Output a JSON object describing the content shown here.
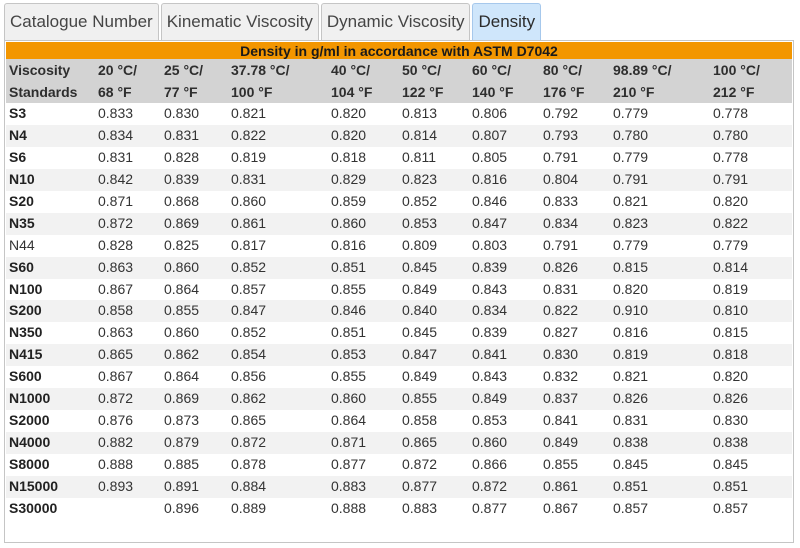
{
  "tabs": [
    {
      "label": "Catalogue Number",
      "active": false
    },
    {
      "label": "Kinematic Viscosity",
      "active": false
    },
    {
      "label": "Dynamic Viscosity",
      "active": false
    },
    {
      "label": "Density",
      "active": true
    }
  ],
  "table": {
    "banner": "Density in g/ml in accordance with ASTM D7042",
    "header": [
      {
        "line1": "Viscosity",
        "line2": "Standards"
      },
      {
        "line1": "20 °C/",
        "line2": "68 °F"
      },
      {
        "line1": "25 °C/",
        "line2": "77 °F"
      },
      {
        "line1": "37.78 °C/",
        "line2": "100 °F"
      },
      {
        "line1": "40 °C/",
        "line2": "104 °F"
      },
      {
        "line1": "50 °C/",
        "line2": "122 °F"
      },
      {
        "line1": "60 °C/",
        "line2": "140 °F"
      },
      {
        "line1": "80 °C/",
        "line2": "176 °F"
      },
      {
        "line1": "98.89 °C/",
        "line2": "210 °F"
      },
      {
        "line1": "100 °C/",
        "line2": "212 °F"
      }
    ],
    "rows": [
      {
        "name": "S3",
        "bold": true,
        "values": [
          "0.833",
          "0.830",
          "0.821",
          "0.820",
          "0.813",
          "0.806",
          "0.792",
          "0.779",
          "0.778"
        ]
      },
      {
        "name": "N4",
        "bold": true,
        "values": [
          "0.834",
          "0.831",
          "0.822",
          "0.820",
          "0.814",
          "0.807",
          "0.793",
          "0.780",
          "0.780"
        ]
      },
      {
        "name": "S6",
        "bold": true,
        "values": [
          "0.831",
          "0.828",
          "0.819",
          "0.818",
          "0.811",
          "0.805",
          "0.791",
          "0.779",
          "0.778"
        ]
      },
      {
        "name": "N10",
        "bold": true,
        "values": [
          "0.842",
          "0.839",
          "0.831",
          "0.829",
          "0.823",
          "0.816",
          "0.804",
          "0.791",
          "0.791"
        ]
      },
      {
        "name": "S20",
        "bold": true,
        "values": [
          "0.871",
          "0.868",
          "0.860",
          "0.859",
          "0.852",
          "0.846",
          "0.833",
          "0.821",
          "0.820"
        ]
      },
      {
        "name": "N35",
        "bold": true,
        "values": [
          "0.872",
          "0.869",
          "0.861",
          "0.860",
          "0.853",
          "0.847",
          "0.834",
          "0.823",
          "0.822"
        ]
      },
      {
        "name": "N44",
        "bold": false,
        "values": [
          "0.828",
          "0.825",
          "0.817",
          "0.816",
          "0.809",
          "0.803",
          "0.791",
          "0.779",
          "0.779"
        ]
      },
      {
        "name": "S60",
        "bold": true,
        "values": [
          "0.863",
          "0.860",
          "0.852",
          "0.851",
          "0.845",
          "0.839",
          "0.826",
          "0.815",
          "0.814"
        ]
      },
      {
        "name": "N100",
        "bold": true,
        "values": [
          "0.867",
          "0.864",
          "0.857",
          "0.855",
          "0.849",
          "0.843",
          "0.831",
          "0.820",
          "0.819"
        ]
      },
      {
        "name": "S200",
        "bold": true,
        "values": [
          "0.858",
          "0.855",
          "0.847",
          "0.846",
          "0.840",
          "0.834",
          "0.822",
          "0.910",
          "0.810"
        ]
      },
      {
        "name": "N350",
        "bold": true,
        "values": [
          "0.863",
          "0.860",
          "0.852",
          "0.851",
          "0.845",
          "0.839",
          "0.827",
          "0.816",
          "0.815"
        ]
      },
      {
        "name": "N415",
        "bold": true,
        "values": [
          "0.865",
          "0.862",
          "0.854",
          "0.853",
          "0.847",
          "0.841",
          "0.830",
          "0.819",
          "0.818"
        ]
      },
      {
        "name": "S600",
        "bold": true,
        "values": [
          "0.867",
          "0.864",
          "0.856",
          "0.855",
          "0.849",
          "0.843",
          "0.832",
          "0.821",
          "0.820"
        ]
      },
      {
        "name": "N1000",
        "bold": true,
        "values": [
          "0.872",
          "0.869",
          "0.862",
          "0.860",
          "0.855",
          "0.849",
          "0.837",
          "0.826",
          "0.826"
        ]
      },
      {
        "name": "S2000",
        "bold": true,
        "values": [
          "0.876",
          "0.873",
          "0.865",
          "0.864",
          "0.858",
          "0.853",
          "0.841",
          "0.831",
          "0.830"
        ]
      },
      {
        "name": "N4000",
        "bold": true,
        "values": [
          "0.882",
          "0.879",
          "0.872",
          "0.871",
          "0.865",
          "0.860",
          "0.849",
          "0.838",
          "0.838"
        ]
      },
      {
        "name": "S8000",
        "bold": true,
        "values": [
          "0.888",
          "0.885",
          "0.878",
          "0.877",
          "0.872",
          "0.866",
          "0.855",
          "0.845",
          "0.845"
        ]
      },
      {
        "name": "N15000",
        "bold": true,
        "values": [
          "0.893",
          "0.891",
          "0.884",
          "0.883",
          "0.877",
          "0.872",
          "0.861",
          "0.851",
          "0.851"
        ]
      },
      {
        "name": "S30000",
        "bold": true,
        "values": [
          "",
          "0.896",
          "0.889",
          "0.888",
          "0.883",
          "0.877",
          "0.867",
          "0.857",
          "0.857"
        ]
      }
    ]
  }
}
